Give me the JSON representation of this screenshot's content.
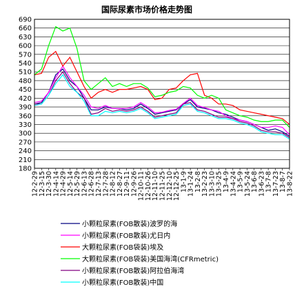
{
  "chart_data": {
    "type": "line",
    "title": "国际尿素市场价格走势图",
    "ylim": [
      180,
      690
    ],
    "yticks": [
      180,
      210,
      240,
      270,
      300,
      330,
      360,
      390,
      420,
      450,
      480,
      510,
      540,
      570,
      600,
      630,
      660,
      690
    ],
    "grid": "horizontal",
    "legend_position": "bottom",
    "x": [
      "12-2-29",
      "12-3-15",
      "12-3-30",
      "12-4-14",
      "12-4-29",
      "12-5-14",
      "12-5-29",
      "12-6-13",
      "12-6-28",
      "12-7-13",
      "12-7-28",
      "12-8-12",
      "12-8-27",
      "12-9-11",
      "12-9-26",
      "12-10-11",
      "12-10-26",
      "12-11-10",
      "12-11-25",
      "12-12-10",
      "12-12-25",
      "13-1-9",
      "13-1-24",
      "13-2-8",
      "13-2-23",
      "13-3-10",
      "13-3-25",
      "13-4-9",
      "13-4-24",
      "13-5-9",
      "13-5-24",
      "13-6-8",
      "13-6-23",
      "13-7-8",
      "13-7-23",
      "13-8-7",
      "13-8-22"
    ],
    "series": [
      {
        "name": "小颗粒尿素(FOB散装)波罗的海",
        "color": "#000080",
        "values": [
          400,
          405,
          440,
          500,
          520,
          480,
          460,
          420,
          380,
          380,
          390,
          385,
          385,
          380,
          385,
          400,
          385,
          365,
          370,
          375,
          380,
          400,
          415,
          390,
          385,
          380,
          370,
          365,
          355,
          345,
          340,
          330,
          320,
          310,
          315,
          305,
          290
        ]
      },
      {
        "name": "小颗粒尿素(FOB散装)尤日内",
        "color": "#ff00ff",
        "values": [
          405,
          410,
          440,
          490,
          530,
          490,
          460,
          430,
          390,
          385,
          395,
          385,
          385,
          385,
          390,
          405,
          390,
          370,
          372,
          378,
          382,
          402,
          420,
          395,
          388,
          380,
          375,
          360,
          350,
          345,
          340,
          330,
          320,
          320,
          325,
          320,
          295
        ]
      },
      {
        "name": "大颗粒尿素(FOB袋装)埃及",
        "color": "#ff0000",
        "values": [
          500,
          505,
          560,
          580,
          530,
          560,
          510,
          460,
          420,
          440,
          450,
          440,
          450,
          450,
          455,
          460,
          450,
          415,
          420,
          450,
          455,
          480,
          500,
          505,
          430,
          420,
          400,
          400,
          395,
          380,
          375,
          370,
          365,
          360,
          355,
          350,
          330
        ]
      },
      {
        "name": "大颗粒尿素(FOB袋装)美国海湾(CFRmetric)",
        "color": "#00ff00",
        "values": [
          500,
          520,
          600,
          665,
          650,
          660,
          590,
          480,
          450,
          470,
          490,
          460,
          470,
          460,
          470,
          470,
          455,
          425,
          430,
          440,
          445,
          460,
          455,
          430,
          420,
          430,
          420,
          380,
          370,
          360,
          355,
          345,
          340,
          340,
          345,
          345,
          320
        ]
      },
      {
        "name": "小颗粒尿素(FOB散装)阿拉伯海湾",
        "color": "#800080",
        "values": [
          400,
          400,
          430,
          480,
          510,
          470,
          440,
          420,
          365,
          370,
          385,
          375,
          380,
          375,
          380,
          390,
          375,
          355,
          360,
          365,
          370,
          400,
          405,
          380,
          375,
          365,
          355,
          355,
          350,
          340,
          335,
          325,
          310,
          305,
          305,
          300,
          285
        ]
      },
      {
        "name": "小颗粒尿素(FOB散装)中国",
        "color": "#00ffff",
        "values": [
          395,
          400,
          430,
          470,
          500,
          460,
          440,
          410,
          360,
          360,
          375,
          370,
          375,
          370,
          375,
          385,
          370,
          350,
          355,
          360,
          365,
          395,
          400,
          375,
          370,
          360,
          350,
          350,
          345,
          335,
          330,
          320,
          305,
          300,
          295,
          295,
          280
        ]
      }
    ]
  }
}
